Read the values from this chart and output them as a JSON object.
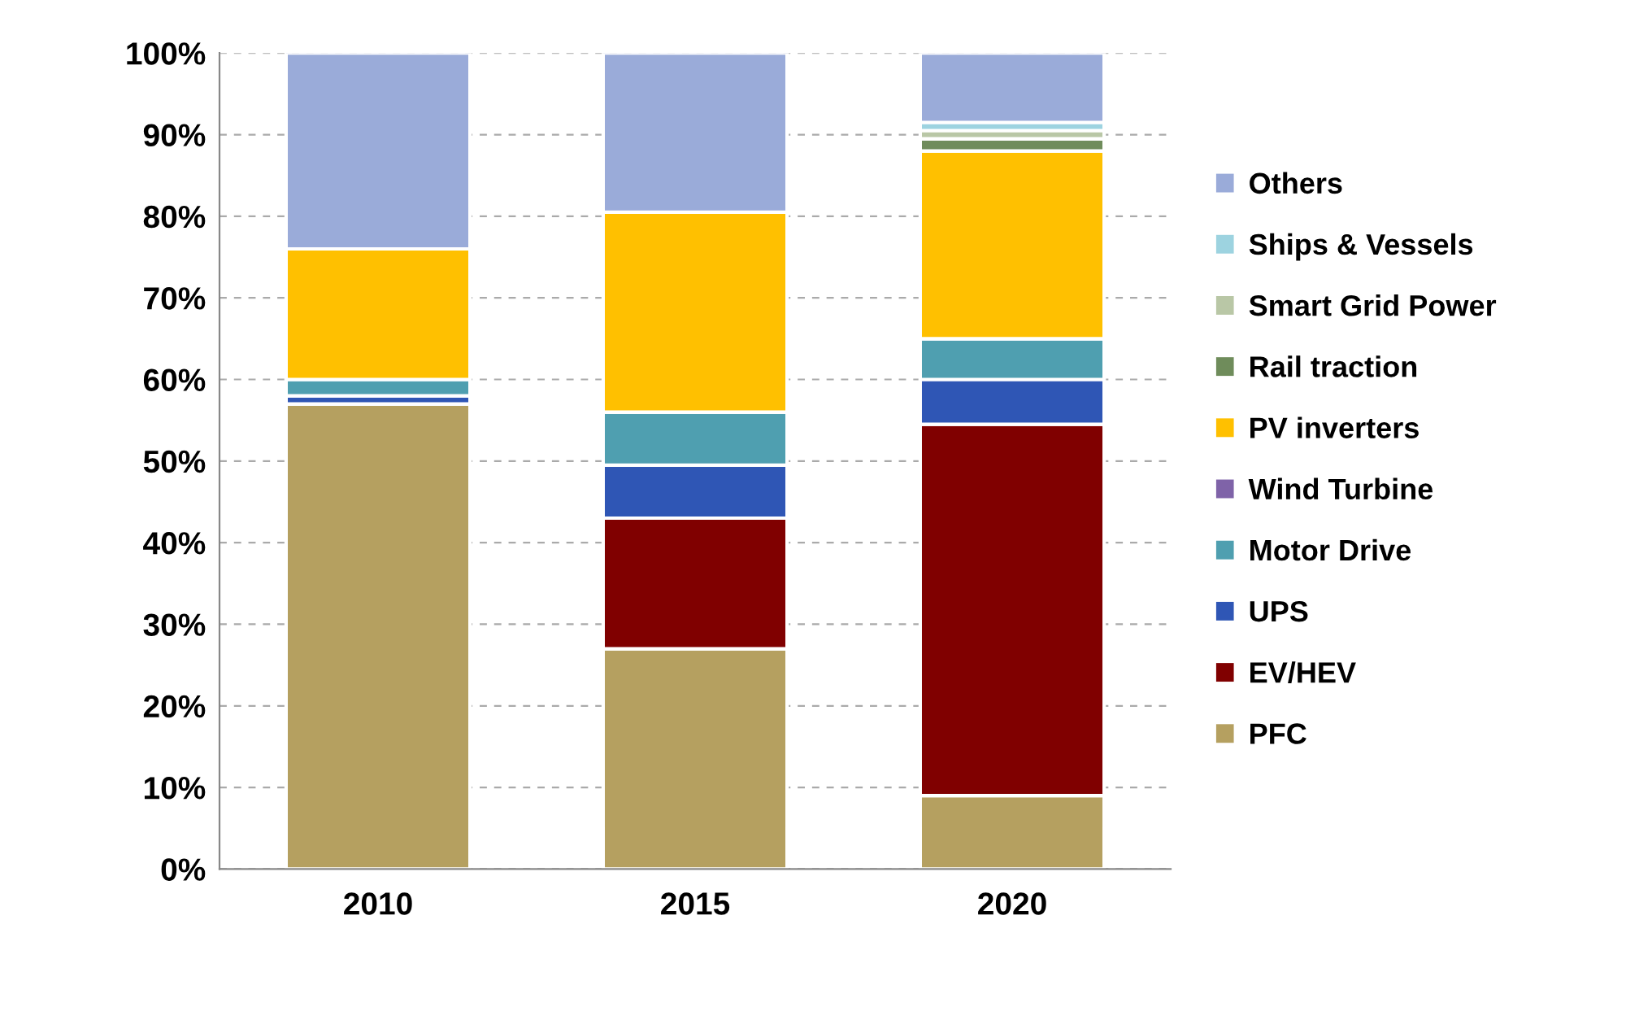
{
  "chart_data": {
    "type": "bar",
    "stacked": true,
    "categories": [
      "2010",
      "2015",
      "2020"
    ],
    "series": [
      {
        "name": "PFC",
        "color": "#b5a060",
        "values": [
          57,
          27,
          9
        ]
      },
      {
        "name": "EV/HEV",
        "color": "#800000",
        "values": [
          0,
          16,
          45.5
        ]
      },
      {
        "name": "UPS",
        "color": "#2f56b5",
        "values": [
          1,
          6.5,
          5.5
        ]
      },
      {
        "name": "Motor Drive",
        "color": "#4f9fb0",
        "values": [
          2,
          6.5,
          5
        ]
      },
      {
        "name": "Wind Turbine",
        "color": "#7f63a8",
        "values": [
          0,
          0,
          0
        ]
      },
      {
        "name": "PV inverters",
        "color": "#ffc000",
        "values": [
          16,
          24.5,
          23
        ]
      },
      {
        "name": "Rail traction",
        "color": "#6f8c5b",
        "values": [
          0,
          0,
          1.5
        ]
      },
      {
        "name": "Smart Grid Power",
        "color": "#b9c7a6",
        "values": [
          0,
          0,
          1
        ]
      },
      {
        "name": "Ships & Vessels",
        "color": "#9dd3e0",
        "values": [
          0,
          0,
          1
        ]
      },
      {
        "name": "Others",
        "color": "#9aabd9",
        "values": [
          24,
          19.5,
          8.5
        ]
      }
    ],
    "ylim": [
      0,
      100
    ],
    "yticks": [
      {
        "value": 0,
        "label": "0%"
      },
      {
        "value": 10,
        "label": "10%"
      },
      {
        "value": 20,
        "label": "20%"
      },
      {
        "value": 30,
        "label": "30%"
      },
      {
        "value": 40,
        "label": "40%"
      },
      {
        "value": 50,
        "label": "50%"
      },
      {
        "value": 60,
        "label": "60%"
      },
      {
        "value": 70,
        "label": "70%"
      },
      {
        "value": 80,
        "label": "80%"
      },
      {
        "value": 90,
        "label": "90%"
      },
      {
        "value": 100,
        "label": "100%"
      }
    ],
    "grid": "y",
    "legend": "right"
  }
}
